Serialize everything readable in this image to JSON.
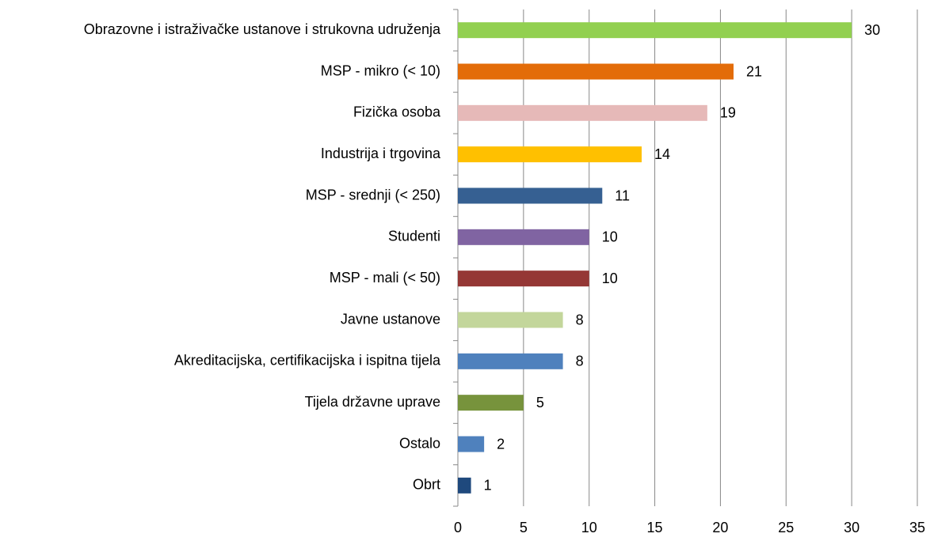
{
  "chart_data": {
    "type": "bar",
    "orientation": "horizontal",
    "categories": [
      "Obrazovne i istraživačke ustanove i strukovna udruženja",
      "MSP - mikro (< 10)",
      "Fizička osoba",
      "Industrija i trgovina",
      "MSP - srednji (< 250)",
      "Studenti",
      "MSP - mali (< 50)",
      "Javne ustanove",
      "Akreditacijska, certifikacijska i ispitna tijela",
      "Tijela državne uprave",
      "Ostalo",
      "Obrt"
    ],
    "values": [
      30,
      21,
      19,
      14,
      11,
      10,
      10,
      8,
      8,
      5,
      2,
      1
    ],
    "colors": [
      "#92d050",
      "#e36c09",
      "#e6b9b8",
      "#ffc000",
      "#366092",
      "#8064a2",
      "#953735",
      "#c3d69b",
      "#4f81bd",
      "#77933c",
      "#4f81bd",
      "#1f497d"
    ],
    "xlim": [
      0,
      35
    ],
    "xticks": [
      0,
      5,
      10,
      15,
      20,
      25,
      30,
      35
    ],
    "grid": true
  }
}
